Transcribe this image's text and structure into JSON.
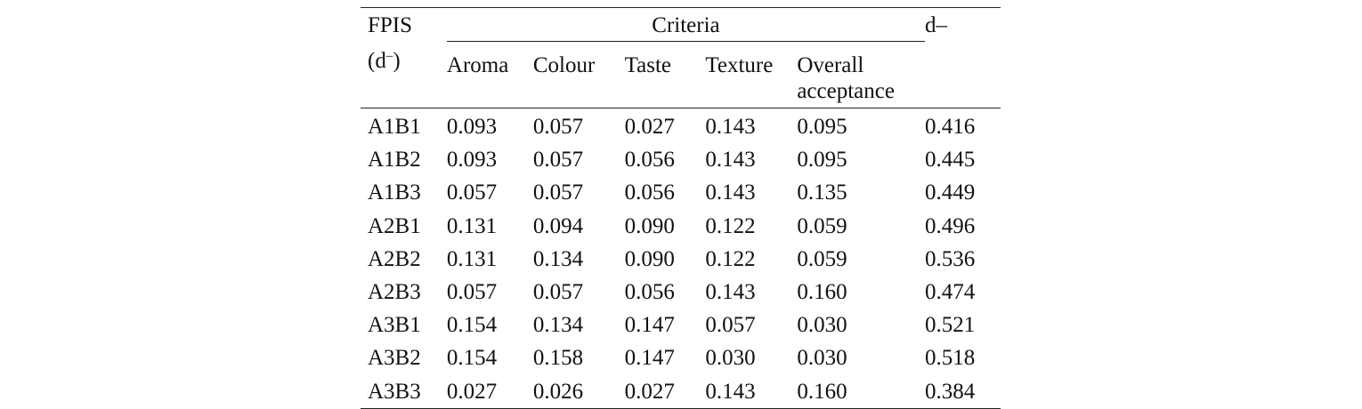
{
  "table": {
    "header": {
      "fpis_label": "FPIS",
      "fpis_sub_open": "(d",
      "fpis_sub_sup": "–",
      "fpis_sub_close": ")",
      "criteria_label": "Criteria",
      "d_label": "d–",
      "criteria_columns": [
        "Aroma",
        "Colour",
        "Taste",
        "Texture"
      ],
      "overall_line1": "Overall",
      "overall_line2": "acceptance"
    },
    "rows": [
      [
        "A1B1",
        "0.093",
        "0.057",
        "0.027",
        "0.143",
        "0.095",
        "0.416"
      ],
      [
        "A1B2",
        "0.093",
        "0.057",
        "0.056",
        "0.143",
        "0.095",
        "0.445"
      ],
      [
        "A1B3",
        "0.057",
        "0.057",
        "0.056",
        "0.143",
        "0.135",
        "0.449"
      ],
      [
        "A2B1",
        "0.131",
        "0.094",
        "0.090",
        "0.122",
        "0.059",
        "0.496"
      ],
      [
        "A2B2",
        "0.131",
        "0.134",
        "0.090",
        "0.122",
        "0.059",
        "0.536"
      ],
      [
        "A2B3",
        "0.057",
        "0.057",
        "0.056",
        "0.143",
        "0.160",
        "0.474"
      ],
      [
        "A3B1",
        "0.154",
        "0.134",
        "0.147",
        "0.057",
        "0.030",
        "0.521"
      ],
      [
        "A3B2",
        "0.154",
        "0.158",
        "0.147",
        "0.030",
        "0.030",
        "0.518"
      ],
      [
        "A3B3",
        "0.027",
        "0.026",
        "0.027",
        "0.143",
        "0.160",
        "0.384"
      ]
    ]
  }
}
